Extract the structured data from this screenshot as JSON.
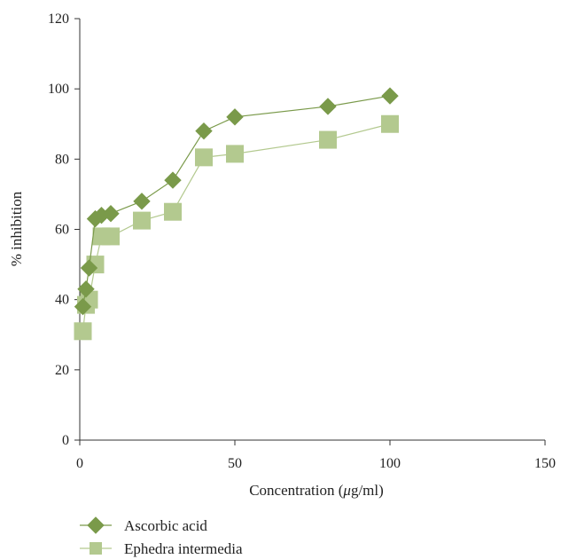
{
  "chart_data": {
    "type": "line",
    "title": "",
    "xlabel_prefix": "Concentration (",
    "xlabel_mu": "μ",
    "xlabel_suffix": "g/ml)",
    "ylabel": "% inhibition",
    "xlim": [
      0,
      150
    ],
    "ylim": [
      0,
      120
    ],
    "xticks": [
      0,
      50,
      100,
      150
    ],
    "yticks": [
      0,
      20,
      40,
      60,
      80,
      100,
      120
    ],
    "grid": false,
    "legend_position": "bottom-left",
    "series": [
      {
        "name": "Ascorbic acid",
        "marker": "diamond",
        "color": "#7a9a4a",
        "x": [
          1,
          2,
          3,
          5,
          7,
          10,
          20,
          30,
          40,
          50,
          80,
          100
        ],
        "y": [
          38,
          43,
          49,
          63,
          64,
          64.5,
          68,
          74,
          88,
          92,
          95,
          98
        ]
      },
      {
        "name": "Ephedra intermedia",
        "marker": "square",
        "color": "#b3c98f",
        "x": [
          1,
          2,
          3,
          5,
          7,
          10,
          20,
          30,
          40,
          50,
          80,
          100
        ],
        "y": [
          31,
          38.5,
          40,
          50,
          58,
          58,
          62.5,
          65,
          80.5,
          81.5,
          85.5,
          90
        ]
      }
    ]
  }
}
